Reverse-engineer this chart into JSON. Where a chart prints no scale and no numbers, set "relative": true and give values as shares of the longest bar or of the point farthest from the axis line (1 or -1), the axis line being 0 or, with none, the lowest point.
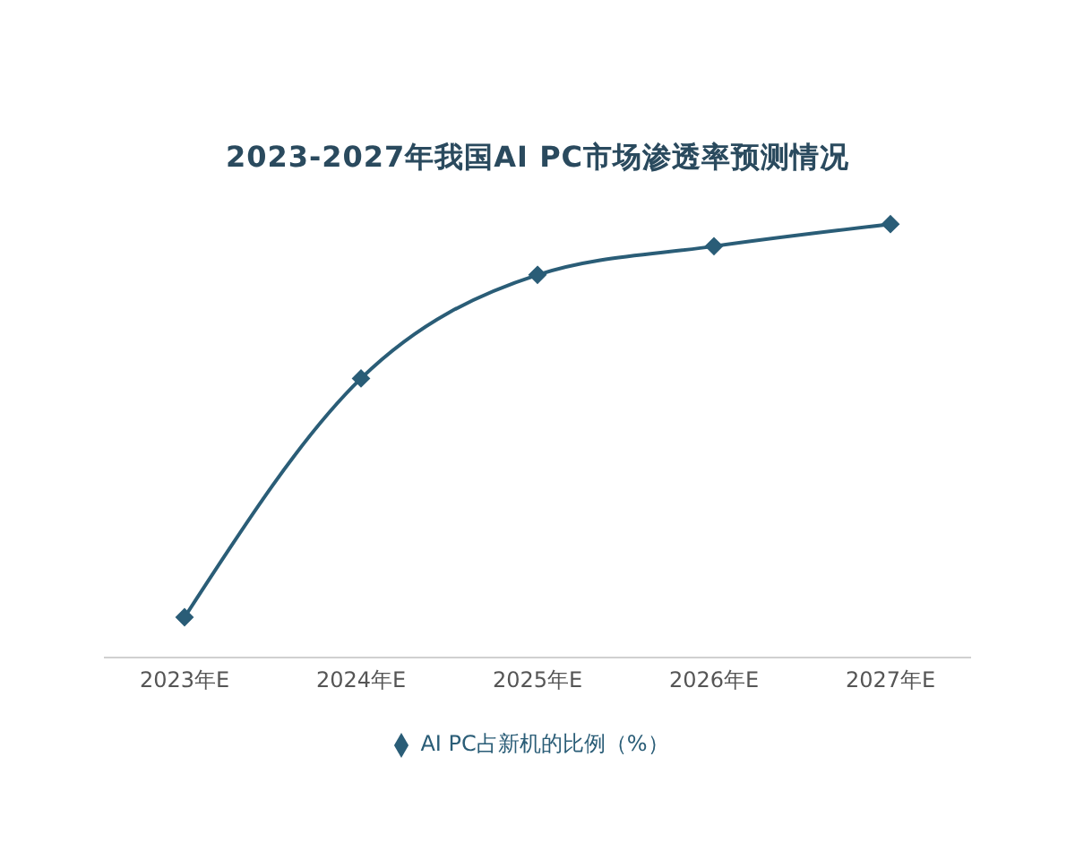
{
  "chart_data": {
    "type": "line",
    "title": "2023-2027年我国AI PC市场渗透率预测情况",
    "categories": [
      "2023年E",
      "2024年E",
      "2025年E",
      "2026年E",
      "2027年E"
    ],
    "series": [
      {
        "name": "AI PC占新机的比例（%）",
        "color": "#2a5d77",
        "values": [
          0.093,
          0.644,
          0.883,
          0.949,
          1
        ]
      }
    ],
    "relative": true,
    "marker": "diamond",
    "line_style": "solid",
    "legend": "bottom"
  }
}
